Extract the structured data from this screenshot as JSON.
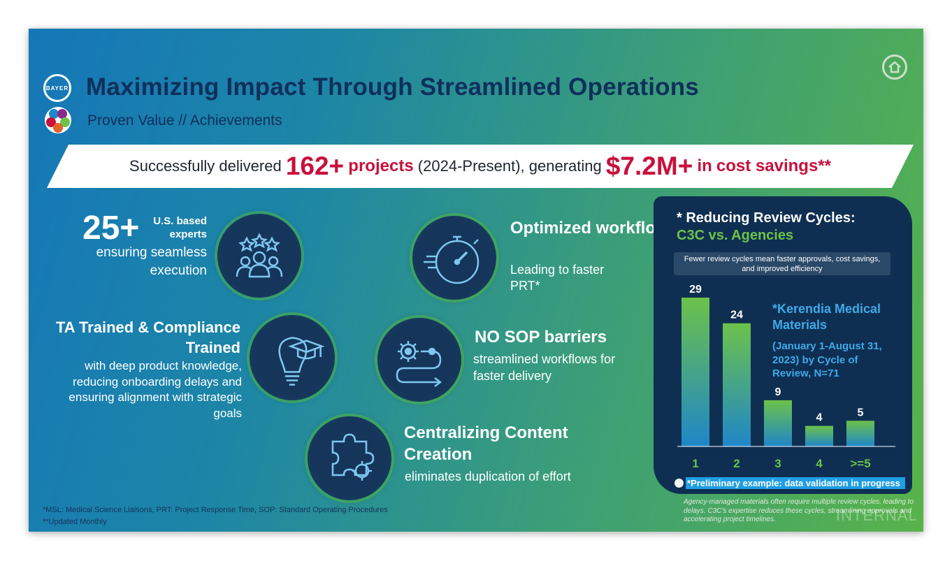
{
  "header": {
    "title": "Maximizing Impact Through Streamlined Operations",
    "subtitle": "Proven Value // Achievements",
    "logo_text": "BAYER"
  },
  "banner": {
    "prefix": "Successfully delivered",
    "projects_number": "162+",
    "projects_label": "projects",
    "period": "(2024-Present), generating",
    "savings_amount": "$7.2M+",
    "savings_in": "in",
    "savings_label": "cost savings**"
  },
  "features": {
    "experts": {
      "number": "25+",
      "label": "U.S. based experts",
      "desc": "ensuring seamless execution"
    },
    "trained": {
      "heading": "TA Trained & Compliance Trained",
      "desc": "with deep product knowledge, reducing onboarding delays and ensuring alignment with strategic goals"
    },
    "workflows": {
      "heading": "Optimized workflows",
      "desc": "Leading to faster PRT*"
    },
    "sop": {
      "heading": "NO SOP barriers",
      "desc": "streamlined workflows for faster delivery"
    },
    "content": {
      "heading": "Centralizing Content Creation",
      "desc": "eliminates duplication of effort"
    }
  },
  "panel": {
    "title": "* Reducing Review Cycles:",
    "subtitle": "C3C vs. Agencies",
    "note": "Fewer review cycles mean faster approvals, cost savings, and improved efficiency",
    "series_label": "*Kerendia Medical Materials",
    "period_label": "(January 1-August 31, 2023) by Cycle of Review, N=71",
    "preliminary": "*Preliminary example: data validation in progress",
    "agency_note": "Agency-managed materials often require multiple review cycles, leading to delays. C3C's expertise reduces these cycles, streamlining approvals and accelerating project timelines."
  },
  "chart_data": {
    "type": "bar",
    "categories": [
      "1",
      "2",
      "3",
      "4",
      ">=5"
    ],
    "values": [
      29,
      24,
      9,
      4,
      5
    ],
    "title": "",
    "xlabel": "",
    "ylabel": "",
    "ylim": [
      0,
      29
    ],
    "grid": false
  },
  "footer": {
    "abbrev": "*MSL: Medical Science Liaisons, PRT: Project Response Time, SOP: Standard Operating Procedures",
    "updated": "**Updated Monthly",
    "watermark": "INTERNAL"
  },
  "colors": {
    "accent": "#c8103c",
    "navy": "#0f2f5c",
    "green": "#6cc24a",
    "blue": "#1f9ee3"
  }
}
